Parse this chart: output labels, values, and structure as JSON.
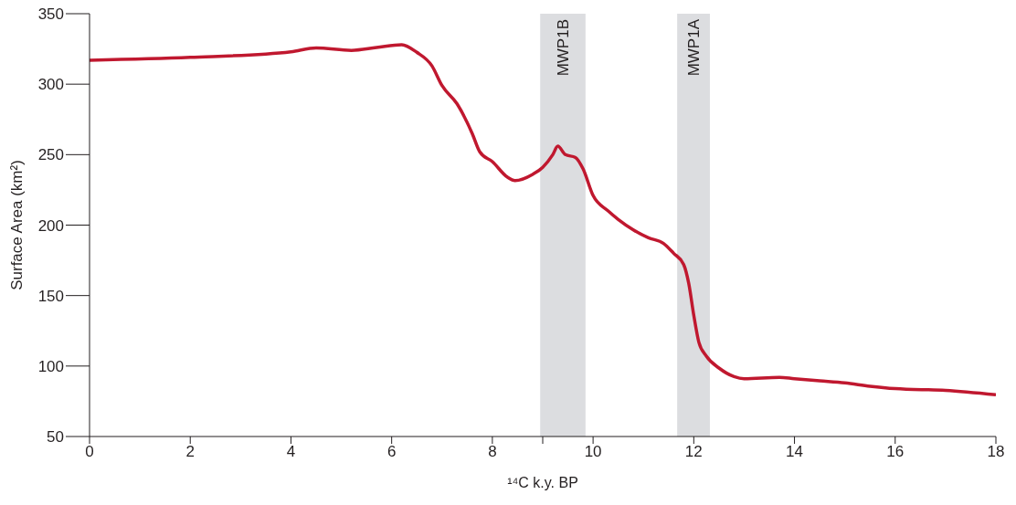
{
  "chart_data": {
    "type": "line",
    "xlabel": "¹⁴C k.y. BP",
    "ylabel": "Surface Area (km²)",
    "xlim": [
      0,
      18
    ],
    "ylim": [
      50,
      350
    ],
    "xticks": [
      0,
      2,
      4,
      6,
      8,
      {
        "value": 9,
        "label": null
      },
      10,
      12,
      14,
      16,
      18
    ],
    "yticks": [
      50,
      100,
      150,
      200,
      250,
      300,
      350
    ],
    "marker": "none",
    "line_style": "solid",
    "bands": [
      {
        "axis": "x",
        "from": 8.95,
        "to": 9.85,
        "label": "MWP1B",
        "color": "#dcdde0"
      },
      {
        "axis": "x",
        "from": 11.67,
        "to": 12.32,
        "label": "MWP1A",
        "color": "#dcdde0"
      }
    ],
    "series": [
      {
        "color": "#c0182f",
        "x": [
          0,
          2,
          4,
          4.5,
          5.2,
          5.7,
          6.2,
          6.5,
          6.8,
          7.0,
          7.3,
          7.6,
          7.75,
          8.0,
          8.3,
          8.45,
          8.8,
          9.0,
          9.2,
          9.3,
          9.45,
          9.65,
          9.8,
          10.0,
          10.3,
          10.5,
          10.8,
          11.1,
          11.4,
          11.6,
          11.8,
          11.9,
          12.0,
          12.1,
          12.25,
          12.5,
          12.8,
          13.0,
          13.7,
          14.0,
          14.5,
          15.0,
          15.5,
          16.0,
          17.0,
          18.0
        ],
        "values": [
          317,
          319,
          323,
          325.7,
          324,
          326,
          328,
          322.6,
          313,
          299,
          286,
          265,
          252,
          245,
          234,
          231.6,
          236,
          241,
          250,
          256,
          250,
          248,
          240,
          221,
          210,
          204,
          196.6,
          191,
          187,
          180,
          172,
          158.6,
          136,
          117,
          107,
          98.6,
          92.5,
          91,
          92,
          91,
          89.5,
          88,
          85.7,
          84,
          82.7,
          79.6
        ]
      }
    ]
  }
}
